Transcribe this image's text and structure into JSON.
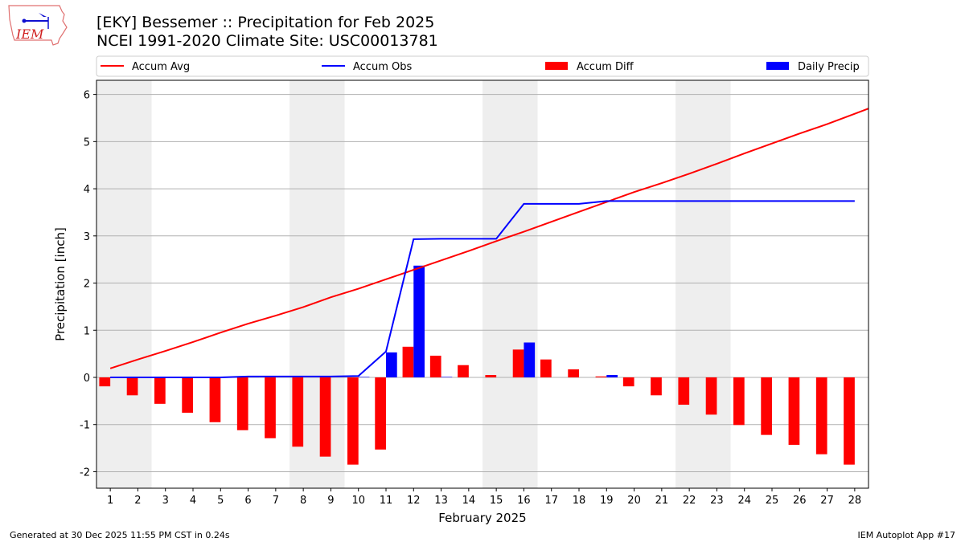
{
  "header": {
    "title_line1": "[EKY] Bessemer :: Precipitation for Feb 2025",
    "title_line2": "NCEI 1991-2020 Climate Site: USC00013781",
    "logo_text": "IEM"
  },
  "footer": {
    "generated": "Generated at 30 Dec 2025 11:55 PM CST in 0.24s",
    "app": "IEM Autoplot App #17"
  },
  "colors": {
    "avg": "#ff0000",
    "obs": "#0000ff",
    "diff": "#ff0000",
    "daily": "#0000ff",
    "weekend": "#eeeeee",
    "grid": "#b0b0b0"
  },
  "chart_data": {
    "type": "bar+line",
    "xlabel": "February 2025",
    "ylabel": "Precipitation [inch]",
    "ylim": [
      -2.35,
      6.3
    ],
    "xlim": [
      0.5,
      28.5
    ],
    "yticks": [
      -2,
      -1,
      0,
      1,
      2,
      3,
      4,
      5,
      6
    ],
    "grid": true,
    "legend_placement": "top",
    "legend": [
      "Accum Avg",
      "Accum Obs",
      "Accum Diff",
      "Daily Precip"
    ],
    "weekend_days": [
      [
        1,
        2
      ],
      [
        8,
        9
      ],
      [
        15,
        16
      ],
      [
        22,
        23
      ]
    ],
    "days": [
      1,
      2,
      3,
      4,
      5,
      6,
      7,
      8,
      9,
      10,
      11,
      12,
      13,
      14,
      15,
      16,
      17,
      18,
      19,
      20,
      21,
      22,
      23,
      24,
      25,
      26,
      27,
      28
    ],
    "series": [
      {
        "name": "Accum Avg",
        "kind": "line",
        "values": [
          0.19,
          0.38,
          0.56,
          0.75,
          0.95,
          1.14,
          1.31,
          1.49,
          1.7,
          1.88,
          2.08,
          2.28,
          2.48,
          2.68,
          2.89,
          3.09,
          3.3,
          3.51,
          3.72,
          3.93,
          4.12,
          4.32,
          4.53,
          4.75,
          4.96,
          5.17,
          5.37,
          5.59
        ]
      },
      {
        "name": "Accum Obs",
        "kind": "line",
        "values": [
          0.0,
          0.0,
          0.0,
          0.0,
          0.0,
          0.02,
          0.02,
          0.02,
          0.02,
          0.03,
          0.55,
          2.93,
          2.94,
          2.94,
          2.94,
          3.68,
          3.68,
          3.68,
          3.74,
          3.74,
          3.74,
          3.74,
          3.74,
          3.74,
          3.74,
          3.74,
          3.74,
          3.74
        ]
      },
      {
        "name": "Accum Diff",
        "kind": "bar",
        "values": [
          -0.19,
          -0.38,
          -0.56,
          -0.75,
          -0.95,
          -1.12,
          -1.29,
          -1.47,
          -1.68,
          -1.85,
          -1.53,
          0.65,
          0.46,
          0.26,
          0.05,
          0.59,
          0.38,
          0.17,
          0.02,
          -0.19,
          -0.38,
          -0.58,
          -0.79,
          -1.01,
          -1.22,
          -1.43,
          -1.63,
          -1.85
        ]
      },
      {
        "name": "Daily Precip",
        "kind": "bar",
        "values": [
          0,
          0,
          0,
          0,
          0,
          0.02,
          0,
          0,
          0,
          0.01,
          0.53,
          2.37,
          0.01,
          0,
          0,
          0.74,
          0,
          0,
          0.05,
          0,
          0,
          0,
          0,
          0,
          0,
          0,
          0,
          0
        ]
      }
    ]
  }
}
